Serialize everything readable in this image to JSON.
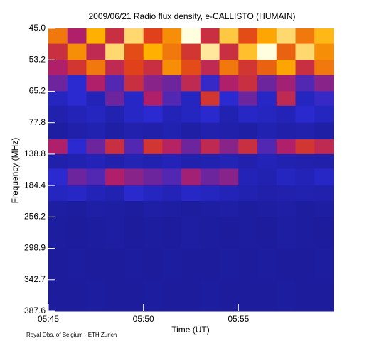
{
  "chart_data": {
    "type": "heatmap",
    "title": "2009/06/21  Radio flux density, e-CALLISTO (HUMAIN)",
    "x_label": "Time (UT)",
    "y_label": "Frequency (MHz)",
    "footer": "Royal Obs. of Belgium - ETH Zurich",
    "xlim": [
      "05:45",
      "06:00"
    ],
    "xticks": [
      "05:45",
      "05:50",
      "05:55"
    ],
    "ylim": [
      45.0,
      387.6
    ],
    "yticks": [
      {
        "value": 45,
        "label": "45.0"
      },
      53.2,
      65.2,
      77.8,
      138.8,
      184.4,
      256.2,
      298.9,
      342.7,
      387.6
    ],
    "x_bins": [
      "05:45",
      "05:46",
      "05:47",
      "05:48",
      "05:49",
      "05:50",
      "05:51",
      "05:52",
      "05:53",
      "05:54",
      "05:55",
      "05:56",
      "05:57",
      "05:58",
      "05:59",
      "06:00"
    ],
    "y_bins": [
      45,
      49,
      53.2,
      59,
      65.2,
      71,
      77.8,
      110,
      138.8,
      160,
      184.4,
      220,
      256.2,
      298.9,
      342.7,
      387.6
    ],
    "colormap": [
      [
        0,
        "#000000"
      ],
      [
        30,
        "#1c1c9c"
      ],
      [
        45,
        "#2a2ad0"
      ],
      [
        55,
        "#b0206a"
      ],
      [
        65,
        "#e0401a"
      ],
      [
        75,
        "#ffb000"
      ],
      [
        85,
        "#ffffe0"
      ]
    ],
    "z": [
      [
        70,
        55,
        75,
        60,
        80,
        65,
        72,
        85,
        60,
        78,
        66,
        74,
        80,
        70,
        76
      ],
      [
        60,
        72,
        58,
        80,
        66,
        75,
        70,
        62,
        82,
        60,
        77,
        85,
        68,
        80,
        72
      ],
      [
        55,
        62,
        70,
        58,
        65,
        60,
        72,
        66,
        58,
        70,
        62,
        68,
        74,
        60,
        70
      ],
      [
        50,
        45,
        55,
        48,
        60,
        52,
        50,
        58,
        46,
        55,
        60,
        50,
        54,
        48,
        52
      ],
      [
        40,
        45,
        38,
        50,
        42,
        55,
        48,
        40,
        62,
        45,
        50,
        42,
        58,
        40,
        46
      ],
      [
        35,
        38,
        40,
        36,
        42,
        45,
        38,
        40,
        44,
        36,
        42,
        40,
        38,
        44,
        40
      ],
      [
        32,
        34,
        36,
        33,
        35,
        34,
        36,
        33,
        35,
        34,
        33,
        36,
        34,
        35,
        33
      ],
      [
        55,
        45,
        50,
        60,
        48,
        62,
        56,
        50,
        58,
        52,
        60,
        48,
        55,
        62,
        58
      ],
      [
        34,
        36,
        38,
        35,
        37,
        36,
        38,
        35,
        36,
        37,
        35,
        38,
        36,
        35,
        34
      ],
      [
        45,
        50,
        48,
        55,
        52,
        50,
        48,
        54,
        50,
        52,
        38,
        36,
        40,
        38,
        42
      ],
      [
        40,
        42,
        38,
        36,
        44,
        40,
        38,
        42,
        40,
        38,
        36,
        34,
        35,
        36,
        35
      ],
      [
        32,
        31,
        33,
        32,
        31,
        33,
        32,
        31,
        32,
        33,
        31,
        32,
        33,
        31,
        32
      ],
      [
        31,
        30,
        31,
        32,
        30,
        31,
        30,
        32,
        31,
        30,
        31,
        30,
        32,
        31,
        30
      ],
      [
        30,
        31,
        30,
        30,
        31,
        30,
        31,
        30,
        30,
        31,
        30,
        31,
        30,
        30,
        31
      ],
      [
        30,
        30,
        31,
        30,
        30,
        31,
        30,
        30,
        31,
        30,
        30,
        30,
        31,
        30,
        30
      ]
    ]
  }
}
